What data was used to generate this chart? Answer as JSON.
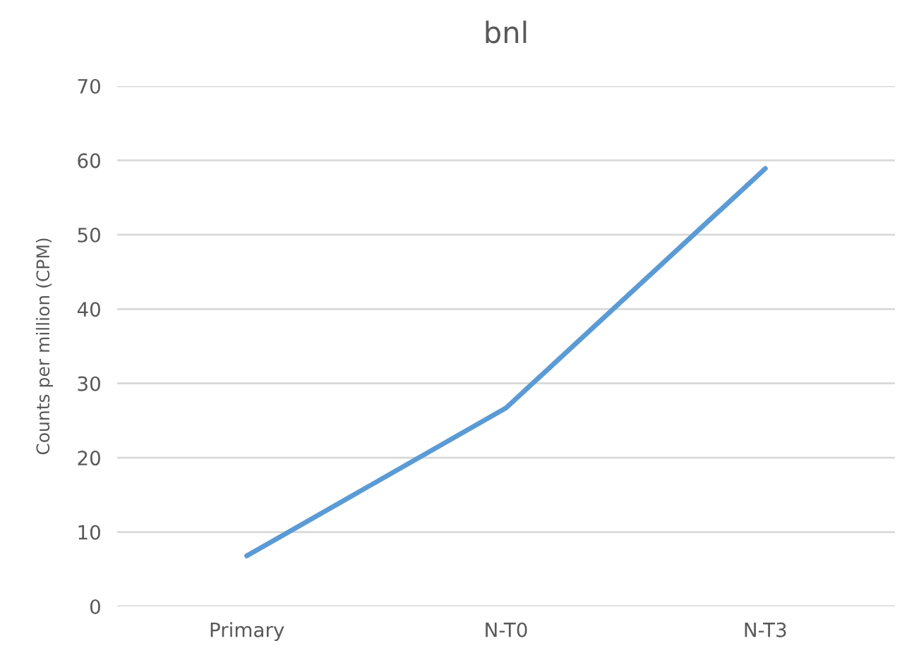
{
  "chart_data": {
    "type": "line",
    "title": "bnl",
    "ylabel": "Counts per million (CPM)",
    "categories": [
      "Primary",
      "N-T0",
      "N-T3"
    ],
    "series": [
      {
        "color": "#5b9bd5",
        "values": [
          6.8,
          26.7,
          58.9
        ]
      }
    ],
    "ylim": [
      0,
      70
    ],
    "yticks": [
      0,
      10,
      20,
      30,
      40,
      50,
      60,
      70
    ],
    "grid": "y",
    "marker": "none",
    "line_style": "solid"
  }
}
